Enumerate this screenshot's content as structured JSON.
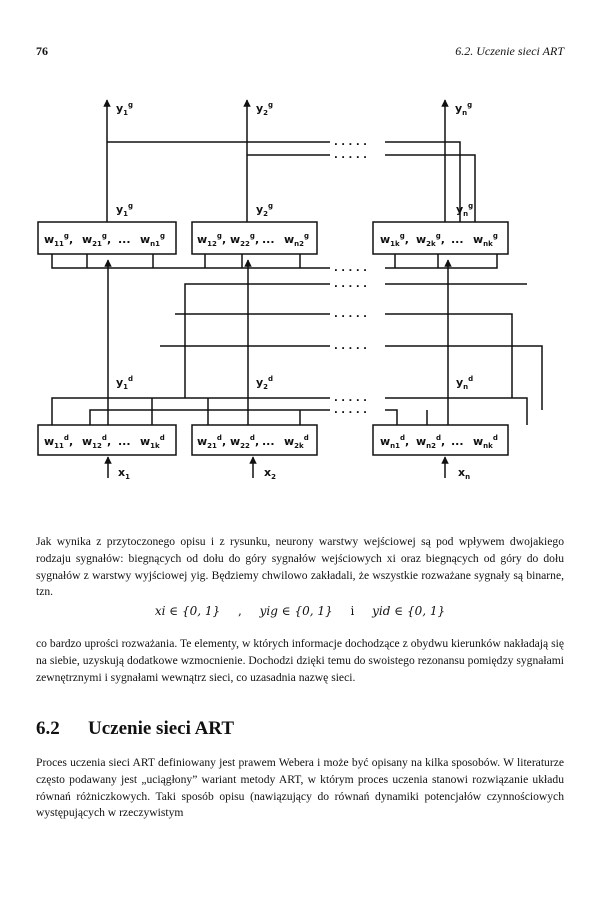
{
  "header": {
    "page_number": "76",
    "running_head": "6.2.  Uczenie sieci ART"
  },
  "diagram": {
    "top_outputs": [
      "y1g",
      "y2g",
      "yng"
    ],
    "top_layer_neurons": [
      {
        "w": [
          "w11g",
          "w21g",
          "wn1g"
        ]
      },
      {
        "w": [
          "w12g",
          "w22g",
          "wn2g"
        ]
      },
      {
        "w": [
          "w1kg",
          "w2kg",
          "wnkg"
        ]
      }
    ],
    "bottom_outputs": [
      "y1d",
      "y2d",
      "ynd"
    ],
    "bottom_layer_neurons": [
      {
        "w": [
          "w11d",
          "w12d",
          "w1kd"
        ]
      },
      {
        "w": [
          "w21d",
          "w22d",
          "w2kd"
        ]
      },
      {
        "w": [
          "wn1d",
          "wn2d",
          "wnkd"
        ]
      }
    ],
    "inputs": [
      "x1",
      "x2",
      "xn"
    ],
    "ellipsis_dots": ". . . . .",
    "ellipsis_inline": "..."
  },
  "paragraph1": "Jak wynika z przytoczonego opisu i z rysunku, neurony warstwy wejściowej są pod wpływem dwojakiego rodzaju sygnałów: biegnących od dołu do góry sygnałów wejściowych xi oraz biegnących od góry do dołu sygnałów z warstwy wyjściowej yig. Będziemy chwilowo zakładali, że wszystkie rozważane sygnały są binarne, tzn.",
  "formula": {
    "part1": "xi ∈ {0, 1}",
    "part2": "yig ∈ {0, 1}",
    "part3": "yid ∈ {0, 1}",
    "separator": ",",
    "conjunction": "i"
  },
  "paragraph2": "co bardzo uprości rozważania. Te elementy, w których informacje dochodzące z obydwu kierunków nakładają się na siebie, uzyskują dodatkowe wzmocnienie. Dochodzi dzięki temu do swoistego rezonansu pomiędzy sygnałami zewnętrznymi i sygnałami wewnątrz sieci, co uzasadnia nazwę sieci.",
  "section": {
    "number": "6.2",
    "title": "Uczenie sieci ART"
  },
  "paragraph3": "Proces uczenia sieci ART definiowany jest prawem Webera i może być opisany na kilka sposobów. W literaturze często podawany jest „uciągłony” wariant metody ART, w którym proces uczenia stanowi rozwiązanie układu równań różniczkowych. Taki sposób opisu (nawiązujący do równań dynamiki potencjałów czynnościowych występujących w rzeczywistym"
}
